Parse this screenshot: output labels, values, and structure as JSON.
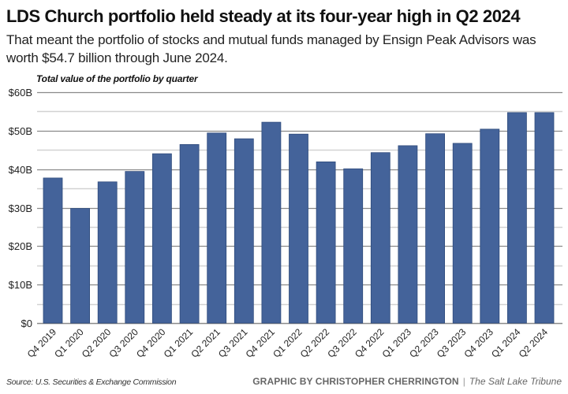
{
  "header": {
    "title": "LDS Church portfolio held steady at its four-year high in Q2 2024",
    "subtitle": "That meant the portfolio of stocks and mutual funds managed by Ensign Peak Advisors was worth $54.7 billion through June 2024."
  },
  "footer": {
    "source": "Source: U.S. Securities & Exchange Commission",
    "credit": "GRAPHIC BY CHRISTOPHER CHERRINGTON",
    "separator": "|",
    "publication": "The Salt Lake Tribune"
  },
  "colors": {
    "bar": "#44639a",
    "bar_edge": "#2f4b7c",
    "grid_major": "#8a8a8a",
    "grid_minor": "#d2d2d2"
  },
  "chart_data": {
    "type": "bar",
    "title": "Total value of the portfolio by quarter",
    "xlabel": "",
    "ylabel": "",
    "ylim": [
      0,
      60
    ],
    "unit": "billion USD",
    "grid": true,
    "yticks": [
      0,
      10,
      20,
      30,
      40,
      50,
      60
    ],
    "ytick_labels": [
      "$0",
      "$10B",
      "$20B",
      "$30B",
      "$40B",
      "$50B",
      "$60B"
    ],
    "minor_gridlines": [
      5,
      15,
      25,
      35,
      45,
      55
    ],
    "categories": [
      "Q4 2019",
      "Q1 2020",
      "Q2 2020",
      "Q3 2020",
      "Q4 2020",
      "Q1 2021",
      "Q2 2021",
      "Q3 2021",
      "Q4 2021",
      "Q1 2022",
      "Q2 2022",
      "Q3 2022",
      "Q4 2022",
      "Q1 2023",
      "Q2 2023",
      "Q3 2023",
      "Q4 2023",
      "Q1 2024",
      "Q2 2024"
    ],
    "values": [
      37.7,
      29.8,
      36.7,
      39.4,
      44.0,
      46.4,
      49.4,
      47.9,
      52.2,
      49.1,
      41.9,
      40.1,
      44.3,
      46.1,
      49.2,
      46.7,
      50.4,
      54.7,
      54.7
    ]
  }
}
